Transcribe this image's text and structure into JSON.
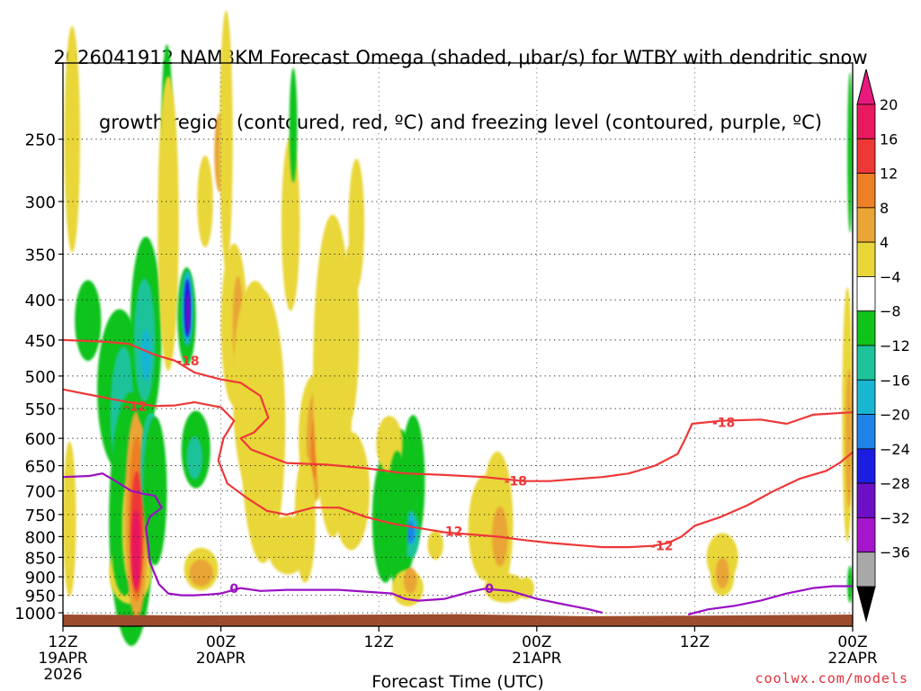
{
  "title": {
    "line1": "2026041912 NAM3KM Forecast Omega (shaded, μbar/s) for WTBY with dendritic snow",
    "line2": "growth region (contoured, red, ºC) and freezing level (contoured, purple, ºC)"
  },
  "credit": "coolwx.com/models",
  "chart_data": {
    "type": "heatmap",
    "xlabel": "Forecast Time (UTC)",
    "ylabel": "",
    "x_tick_labels": [
      {
        "hour": 0,
        "lines": [
          "12Z",
          "19APR",
          "2026"
        ]
      },
      {
        "hour": 12,
        "lines": [
          "00Z",
          "20APR"
        ]
      },
      {
        "hour": 24,
        "lines": [
          "12Z"
        ]
      },
      {
        "hour": 36,
        "lines": [
          "00Z",
          "21APR"
        ]
      },
      {
        "hour": 48,
        "lines": [
          "12Z"
        ]
      },
      {
        "hour": 60,
        "lines": [
          "00Z",
          "22APR"
        ]
      }
    ],
    "xlim": [
      0,
      60
    ],
    "y_ticks_hpa": [
      250,
      300,
      350,
      400,
      450,
      500,
      550,
      600,
      650,
      700,
      750,
      800,
      850,
      900,
      950,
      1000
    ],
    "ylim_hpa": [
      200,
      1040
    ],
    "y_scale": "log-pressure",
    "grid": true,
    "colorbar": {
      "labels": [
        "20",
        "16",
        "12",
        "8",
        "4",
        "−4",
        "−8",
        "−12",
        "−16",
        "−20",
        "−24",
        "−28",
        "−32",
        "−36"
      ],
      "colors": [
        "#e8195e",
        "#ee3838",
        "#ed7f24",
        "#e9a535",
        "#e9d638",
        "#ffffff",
        "#10c31a",
        "#1ec39a",
        "#19b6d2",
        "#1f83e8",
        "#1b1ee0",
        "#6c10c6",
        "#a515cc",
        "#a8a8a8"
      ],
      "top_arrow": "#e8197e",
      "bottom_arrow": "#000000"
    },
    "ground_color": "#9c4c2c",
    "series": [
      {
        "name": "-18",
        "color": "#ee3838",
        "points": [
          [
            0,
            450
          ],
          [
            3,
            452
          ],
          [
            5,
            455
          ],
          [
            7,
            470
          ],
          [
            8.5,
            478
          ],
          [
            10,
            495
          ],
          [
            12,
            505
          ],
          [
            13.5,
            510
          ],
          [
            15,
            530
          ],
          [
            15.6,
            565
          ],
          [
            14.5,
            590
          ],
          [
            13.5,
            600
          ],
          [
            14.3,
            620
          ],
          [
            17,
            645
          ],
          [
            20,
            648
          ],
          [
            23,
            655
          ],
          [
            26,
            665
          ],
          [
            29,
            668
          ],
          [
            32,
            672
          ],
          [
            35,
            680
          ],
          [
            37,
            680
          ],
          [
            39,
            676
          ],
          [
            41,
            672
          ],
          [
            43,
            665
          ],
          [
            45,
            650
          ],
          [
            46.7,
            628
          ],
          [
            47.2,
            605
          ],
          [
            47.8,
            575
          ],
          [
            50,
            570
          ],
          [
            53,
            568
          ],
          [
            55,
            575
          ],
          [
            57,
            560
          ],
          [
            60,
            556
          ]
        ],
        "labels": [
          [
            9.5,
            478
          ],
          [
            34.4,
            680
          ],
          [
            50.2,
            573
          ]
        ]
      },
      {
        "name": "-12",
        "color": "#ee3838",
        "points": [
          [
            0,
            520
          ],
          [
            3,
            532
          ],
          [
            5,
            540
          ],
          [
            7,
            546
          ],
          [
            8.5,
            545
          ],
          [
            10,
            540
          ],
          [
            12,
            548
          ],
          [
            13,
            570
          ],
          [
            12.2,
            600
          ],
          [
            11.8,
            640
          ],
          [
            12.5,
            685
          ],
          [
            14,
            715
          ],
          [
            15.5,
            742
          ],
          [
            17,
            750
          ],
          [
            19,
            735
          ],
          [
            21,
            735
          ],
          [
            23,
            755
          ],
          [
            25,
            770
          ],
          [
            27,
            780
          ],
          [
            29,
            790
          ],
          [
            31,
            795
          ],
          [
            33,
            800
          ],
          [
            35,
            808
          ],
          [
            37,
            815
          ],
          [
            39,
            820
          ],
          [
            41,
            825
          ],
          [
            43,
            825
          ],
          [
            44.8,
            822
          ],
          [
            46,
            815
          ],
          [
            47,
            800
          ],
          [
            48,
            775
          ],
          [
            50,
            755
          ],
          [
            52,
            730
          ],
          [
            54,
            700
          ],
          [
            56,
            675
          ],
          [
            58,
            660
          ],
          [
            59,
            645
          ],
          [
            60,
            625
          ]
        ],
        "labels": [
          [
            5.5,
            546
          ],
          [
            29.5,
            788
          ],
          [
            45.5,
            822
          ]
        ]
      },
      {
        "name": "0",
        "color": "#9a10c4",
        "points": [
          [
            0,
            672
          ],
          [
            2,
            670
          ],
          [
            3,
            665
          ],
          [
            4,
            680
          ],
          [
            5.2,
            700
          ],
          [
            6,
            705
          ],
          [
            7,
            710
          ],
          [
            7.5,
            735
          ],
          [
            6.6,
            755
          ],
          [
            6.3,
            780
          ],
          [
            6.5,
            825
          ],
          [
            6.6,
            862
          ],
          [
            7.3,
            920
          ],
          [
            8,
            945
          ],
          [
            9,
            950
          ],
          [
            10,
            950
          ],
          [
            11,
            948
          ],
          [
            12,
            945
          ],
          [
            13,
            935
          ],
          [
            13.5,
            930
          ],
          [
            15,
            938
          ],
          [
            17,
            935
          ],
          [
            19,
            935
          ],
          [
            21,
            935
          ],
          [
            23,
            940
          ],
          [
            25,
            945
          ],
          [
            26,
            960
          ],
          [
            27,
            965
          ],
          [
            29,
            960
          ],
          [
            30,
            950
          ],
          [
            31,
            940
          ],
          [
            32,
            932
          ],
          [
            34,
            938
          ],
          [
            36,
            960
          ],
          [
            38,
            975
          ],
          [
            40,
            990
          ],
          [
            41,
            1000
          ]
        ],
        "labels": [
          [
            13,
            931
          ],
          [
            32.4,
            931
          ]
        ]
      },
      {
        "name": "0",
        "color": "#9a10c4",
        "points": [
          [
            47.5,
            1005
          ],
          [
            49,
            990
          ],
          [
            51,
            980
          ],
          [
            53,
            965
          ],
          [
            55,
            945
          ],
          [
            57,
            930
          ],
          [
            58.5,
            925
          ],
          [
            60,
            925
          ]
        ],
        "labels": []
      }
    ]
  }
}
